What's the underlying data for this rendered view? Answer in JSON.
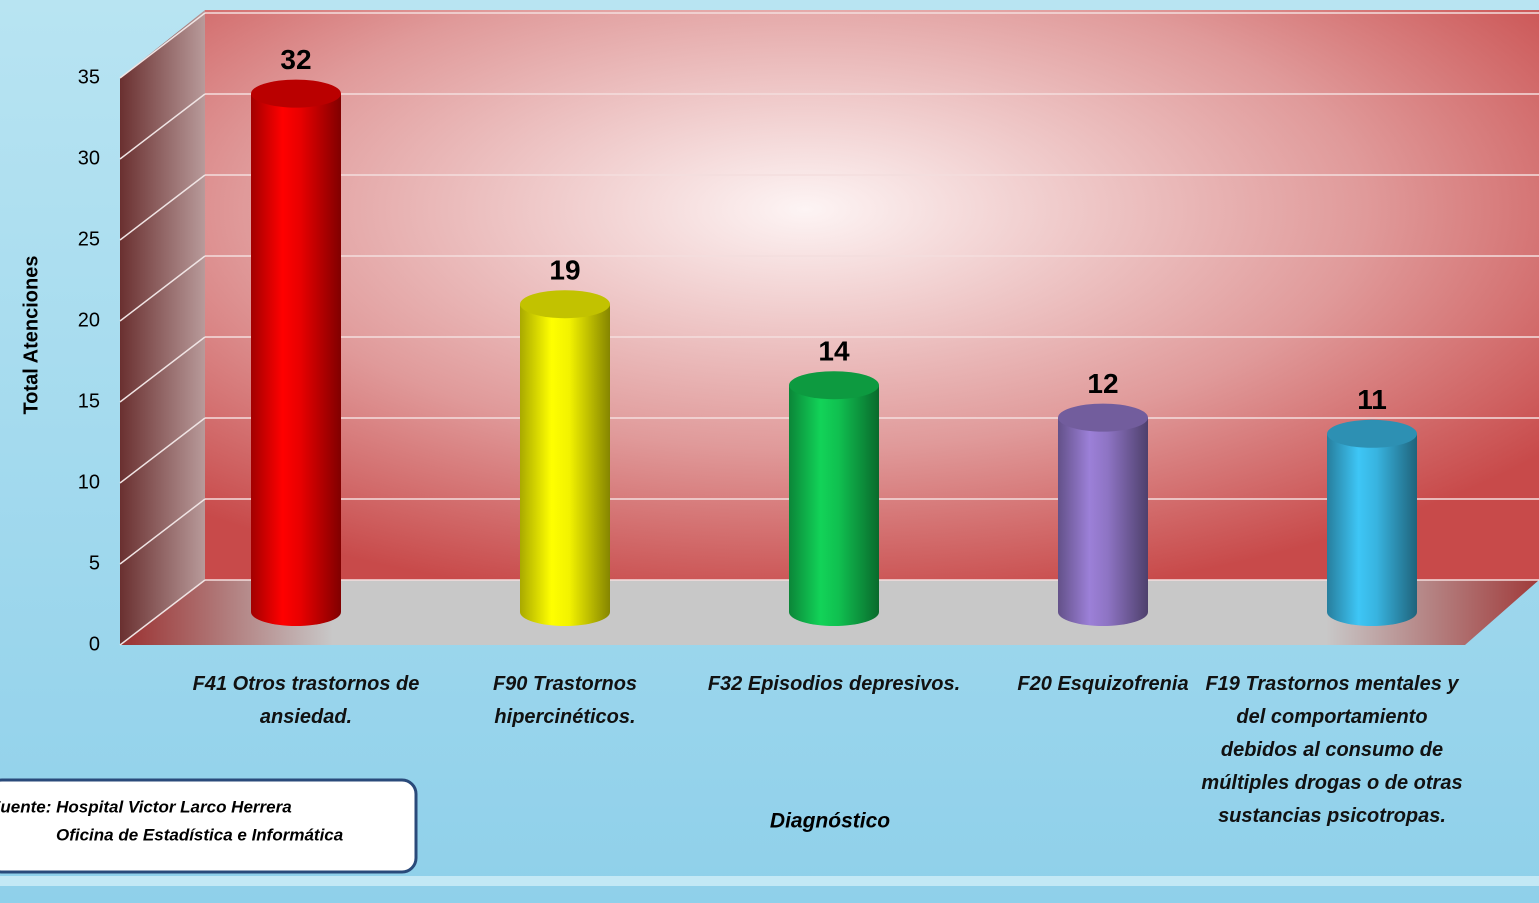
{
  "chart_data": {
    "type": "bar",
    "y_label": "Total Atenciones",
    "x_label": "Diagnóstico",
    "categories": [
      "F41 Otros trastornos de ansiedad.",
      "F90 Trastornos hipercinéticos.",
      "F32 Episodios depresivos.",
      "F20 Esquizofrenia",
      "F19 Trastornos mentales y del comportamiento debidos al consumo de múltiples drogas o de otras sustancias psicotropas."
    ],
    "values": [
      32,
      19,
      14,
      12,
      11
    ],
    "colors": [
      "#e80000",
      "#f2f200",
      "#10c050",
      "#8e74c4",
      "#38b4e0"
    ],
    "ylim": [
      0,
      35
    ],
    "yticks": [
      0,
      5,
      10,
      15,
      20,
      25,
      30,
      35
    ],
    "grid": true,
    "source": [
      "Fuente:  Hospital Victor Larco Herrera",
      "Oficina de Estadística e Informática"
    ]
  }
}
